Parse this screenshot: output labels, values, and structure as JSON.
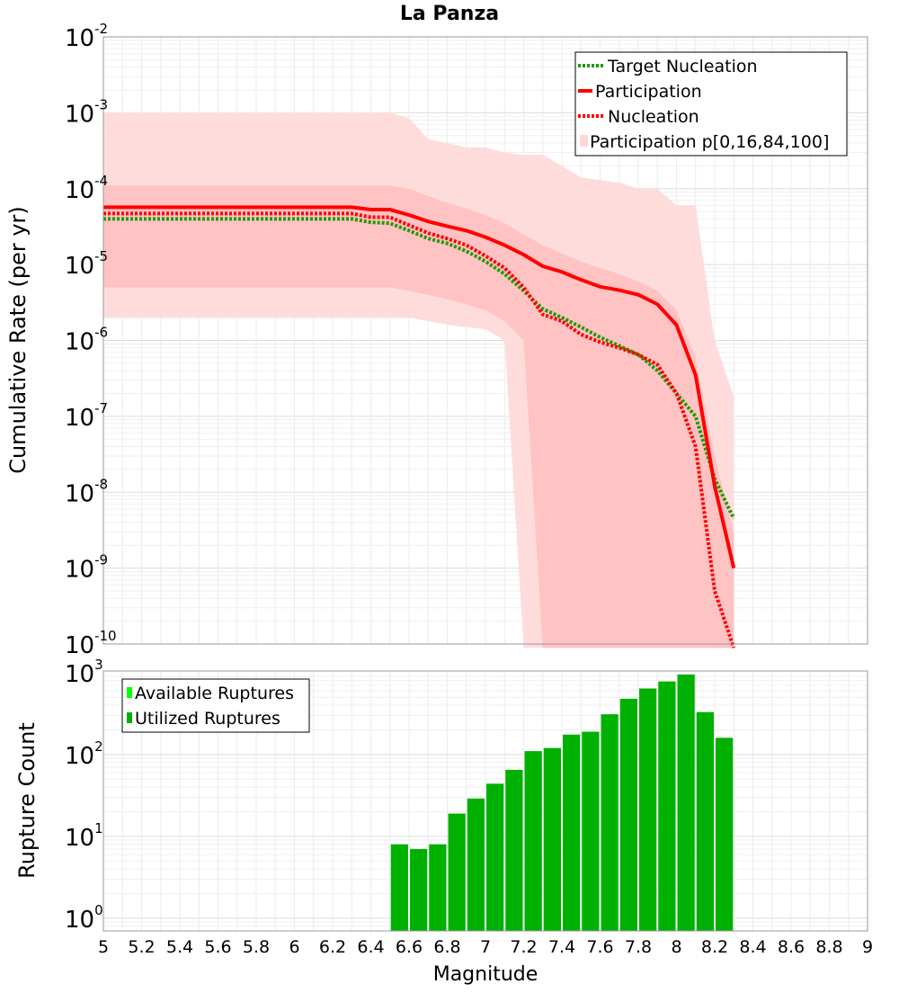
{
  "chart_data": [
    {
      "type": "line",
      "title": "La Panza",
      "xlabel": "",
      "ylabel": "Cumulative Rate (per yr)",
      "xlim": [
        5,
        9
      ],
      "ylim": [
        1e-10,
        0.01
      ],
      "yscale": "log",
      "grid": true,
      "legend_position": "top-right",
      "y_ticks": [
        {
          "base": "10",
          "exp": "-2",
          "value": 0.01
        },
        {
          "base": "10",
          "exp": "-3",
          "value": 0.001
        },
        {
          "base": "10",
          "exp": "-4",
          "value": 0.0001
        },
        {
          "base": "10",
          "exp": "-5",
          "value": 1e-05
        },
        {
          "base": "10",
          "exp": "-6",
          "value": 1e-06
        },
        {
          "base": "10",
          "exp": "-7",
          "value": 1e-07
        },
        {
          "base": "10",
          "exp": "-8",
          "value": 1e-08
        },
        {
          "base": "10",
          "exp": "-9",
          "value": 1e-09
        },
        {
          "base": "10",
          "exp": "-10",
          "value": 1e-10
        }
      ],
      "legend": [
        {
          "label": "Target Nucleation",
          "color": "#1f9a00",
          "style": "dotted"
        },
        {
          "label": "Participation",
          "color": "#ff0000",
          "style": "solid"
        },
        {
          "label": "Nucleation",
          "color": "#ff0000",
          "style": "dotted"
        },
        {
          "label": "Participation p[0,16,84,100]",
          "color": "#ffd6d6",
          "style": "fill"
        }
      ],
      "x": [
        5.0,
        5.1,
        5.2,
        5.3,
        5.4,
        5.5,
        5.6,
        5.7,
        5.8,
        5.9,
        6.0,
        6.1,
        6.2,
        6.3,
        6.4,
        6.5,
        6.6,
        6.7,
        6.8,
        6.9,
        7.0,
        7.1,
        7.2,
        7.3,
        7.4,
        7.5,
        7.6,
        7.7,
        7.8,
        7.9,
        8.0,
        8.1,
        8.2,
        8.3
      ],
      "series": [
        {
          "name": "Target Nucleation",
          "color": "#1f9a00",
          "style": "dotted",
          "values": [
            4e-05,
            4e-05,
            4e-05,
            4e-05,
            4e-05,
            4e-05,
            4e-05,
            4e-05,
            4e-05,
            4e-05,
            4e-05,
            4e-05,
            4e-05,
            4e-05,
            3.6e-05,
            3.5e-05,
            2.8e-05,
            2.2e-05,
            1.9e-05,
            1.5e-05,
            1.1e-05,
            7.5e-06,
            4.5e-06,
            2.6e-06,
            2e-06,
            1.5e-06,
            1.1e-06,
            8.5e-07,
            6.5e-07,
            4e-07,
            2e-07,
            1e-07,
            1.5e-08,
            4.5e-09
          ]
        },
        {
          "name": "Participation",
          "color": "#ff0000",
          "style": "solid",
          "values": [
            5.7e-05,
            5.7e-05,
            5.7e-05,
            5.7e-05,
            5.7e-05,
            5.7e-05,
            5.7e-05,
            5.7e-05,
            5.7e-05,
            5.7e-05,
            5.7e-05,
            5.7e-05,
            5.7e-05,
            5.7e-05,
            5.3e-05,
            5.3e-05,
            4.5e-05,
            3.7e-05,
            3.2e-05,
            2.8e-05,
            2.3e-05,
            1.8e-05,
            1.35e-05,
            9.5e-06,
            8e-06,
            6.3e-06,
            5.1e-06,
            4.6e-06,
            4e-06,
            3e-06,
            1.6e-06,
            3.5e-07,
            1.2e-08,
            1e-09
          ]
        },
        {
          "name": "Nucleation",
          "color": "#ff0000",
          "style": "dotted",
          "values": [
            4.7e-05,
            4.7e-05,
            4.7e-05,
            4.7e-05,
            4.7e-05,
            4.7e-05,
            4.7e-05,
            4.7e-05,
            4.7e-05,
            4.7e-05,
            4.7e-05,
            4.7e-05,
            4.7e-05,
            4.7e-05,
            4.2e-05,
            4.2e-05,
            3.3e-05,
            2.6e-05,
            2.2e-05,
            1.8e-05,
            1.3e-05,
            9e-06,
            5e-06,
            2.2e-06,
            1.8e-06,
            1.2e-06,
            9.5e-07,
            8e-07,
            6.5e-07,
            4.8e-07,
            2e-07,
            4e-08,
            5e-10,
            1e-11
          ]
        }
      ],
      "band_outer": {
        "x": [
          5.0,
          5.1,
          5.2,
          5.3,
          5.4,
          5.5,
          5.6,
          5.7,
          5.8,
          5.9,
          6.0,
          6.1,
          6.2,
          6.3,
          6.4,
          6.5,
          6.6,
          6.7,
          6.8,
          6.9,
          7.0,
          7.1,
          7.2,
          7.3,
          7.4,
          7.5,
          7.6,
          7.7,
          7.8,
          7.9,
          8.0,
          8.1,
          8.2,
          8.3
        ],
        "upper": [
          0.001,
          0.001,
          0.001,
          0.001,
          0.001,
          0.001,
          0.001,
          0.001,
          0.001,
          0.001,
          0.001,
          0.001,
          0.001,
          0.001,
          0.001,
          0.001,
          0.00085,
          0.00045,
          0.0004,
          0.00035,
          0.00035,
          0.0003,
          0.00028,
          0.00028,
          0.0002,
          0.00014,
          0.00013,
          0.00012,
          0.0001,
          0.0001,
          6e-05,
          6e-05,
          1e-06,
          1.8e-07
        ],
        "lower": [
          2e-06,
          2e-06,
          2e-06,
          2e-06,
          2e-06,
          2e-06,
          2e-06,
          2e-06,
          2e-06,
          2e-06,
          2e-06,
          2e-06,
          2e-06,
          2e-06,
          2e-06,
          2e-06,
          2e-06,
          1.8e-06,
          1.6e-06,
          1.5e-06,
          1.4e-06,
          1e-06,
          1e-11,
          1e-11,
          1e-11,
          1e-11,
          1e-11,
          1e-11,
          1e-11,
          1e-11,
          1e-11,
          1e-11,
          1e-11,
          1e-11
        ]
      },
      "band_inner": {
        "x": [
          5.0,
          5.1,
          5.2,
          5.3,
          5.4,
          5.5,
          5.6,
          5.7,
          5.8,
          5.9,
          6.0,
          6.1,
          6.2,
          6.3,
          6.4,
          6.5,
          6.6,
          6.7,
          6.8,
          6.9,
          7.0,
          7.1,
          7.2,
          7.3,
          7.4,
          7.5,
          7.6,
          7.7,
          7.8,
          7.9,
          8.0,
          8.1,
          8.2,
          8.3
        ],
        "upper": [
          0.00011,
          0.00011,
          0.00011,
          0.00011,
          0.00011,
          0.00011,
          0.00011,
          0.00011,
          0.00011,
          0.00011,
          0.00011,
          0.00011,
          0.00011,
          0.00011,
          0.00011,
          0.00011,
          0.0001,
          8e-05,
          6.5e-05,
          5.5e-05,
          4.5e-05,
          3.5e-05,
          2.5e-05,
          1.8e-05,
          1.4e-05,
          1.1e-05,
          9e-06,
          7.5e-06,
          6e-06,
          4.5e-06,
          2.5e-06,
          6e-07,
          3e-08,
          3e-09
        ],
        "lower": [
          5e-06,
          5e-06,
          5e-06,
          5e-06,
          5e-06,
          5e-06,
          5e-06,
          5e-06,
          5e-06,
          5e-06,
          5e-06,
          5e-06,
          5e-06,
          5e-06,
          5e-06,
          5e-06,
          4.5e-06,
          4e-06,
          3.5e-06,
          3e-06,
          2.5e-06,
          1.8e-06,
          1e-06,
          1e-11,
          1e-11,
          1e-11,
          1e-11,
          1e-11,
          1e-11,
          1e-11,
          1e-11,
          1e-11,
          1e-11,
          1e-11
        ]
      }
    },
    {
      "type": "bar",
      "title": "",
      "xlabel": "Magnitude",
      "ylabel": "Rupture Count",
      "xlim": [
        5,
        9
      ],
      "ylim": [
        0.7,
        1000
      ],
      "yscale": "log",
      "grid": true,
      "legend_position": "top-left",
      "y_ticks": [
        {
          "base": "10",
          "exp": "3",
          "value": 1000
        },
        {
          "base": "10",
          "exp": "2",
          "value": 100
        },
        {
          "base": "10",
          "exp": "1",
          "value": 10
        },
        {
          "base": "10",
          "exp": "0",
          "value": 1
        }
      ],
      "x_ticks": [
        "5",
        "5.2",
        "5.4",
        "5.6",
        "5.8",
        "6",
        "6.2",
        "6.4",
        "6.6",
        "6.8",
        "7",
        "7.2",
        "7.4",
        "7.6",
        "7.8",
        "8",
        "8.2",
        "8.4",
        "8.6",
        "8.8",
        "9"
      ],
      "legend": [
        {
          "label": "Available Ruptures",
          "color": "#00ff00"
        },
        {
          "label": "Utilized Ruptures",
          "color": "#00b000"
        }
      ],
      "bar_width": 0.1,
      "x": [
        6.55,
        6.65,
        6.75,
        6.85,
        6.95,
        7.05,
        7.15,
        7.25,
        7.35,
        7.45,
        7.55,
        7.65,
        7.75,
        7.85,
        7.95,
        8.05,
        8.15,
        8.25
      ],
      "series": [
        {
          "name": "Utilized Ruptures",
          "color": "#00b000",
          "values": [
            8,
            7,
            8,
            19,
            29,
            44,
            65,
            110,
            120,
            175,
            190,
            310,
            480,
            640,
            780,
            950,
            330,
            160
          ]
        }
      ]
    }
  ]
}
